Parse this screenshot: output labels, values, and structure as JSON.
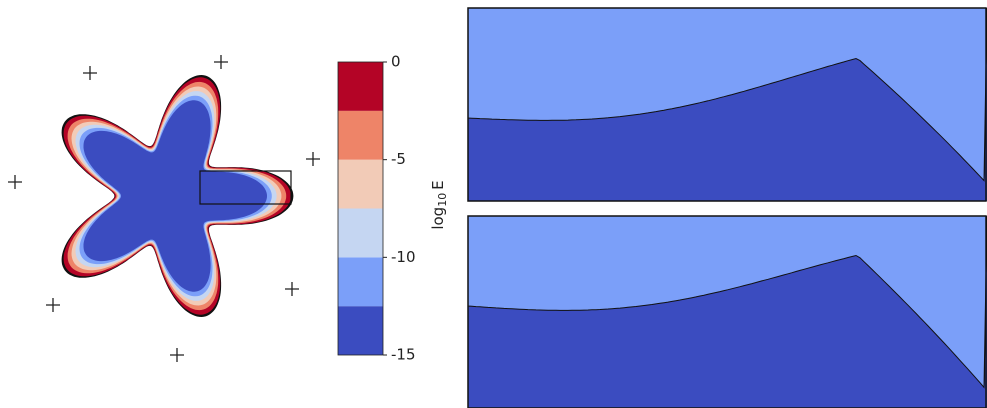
{
  "chart_data": {
    "type": "contour",
    "colorbar_label": [
      "log",
      "10",
      "E"
    ],
    "levels": [
      -15,
      -12.5,
      -10,
      -7.5,
      -5,
      -2.5,
      0
    ],
    "colors": [
      "#3b4cc0",
      "#7b9ff9",
      "#c5d6f2",
      "#f2cbb7",
      "#ee8468",
      "#b40426"
    ],
    "clim": [
      -15,
      0
    ],
    "cticks": [
      0,
      -5,
      -10,
      -15
    ]
  }
}
